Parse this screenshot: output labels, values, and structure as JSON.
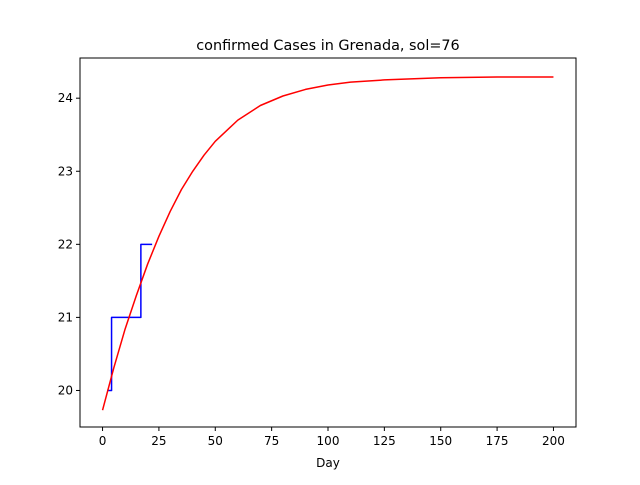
{
  "chart_data": {
    "type": "line",
    "title": "confirmed Cases in Grenada, sol=76",
    "xlabel": "Day",
    "ylabel": "",
    "xlim": [
      -10,
      210
    ],
    "ylim": [
      19.5,
      24.55
    ],
    "xticks": [
      0,
      25,
      50,
      75,
      100,
      125,
      150,
      175,
      200
    ],
    "yticks": [
      20,
      21,
      22,
      23,
      24
    ],
    "grid": false,
    "legend": "none",
    "series": [
      {
        "color": "#0000ff",
        "step": true,
        "x": [
          2,
          3,
          4,
          15,
          16,
          17,
          18,
          19,
          20,
          21,
          22
        ],
        "y": [
          20,
          20,
          21,
          21,
          21,
          22,
          22,
          22,
          22,
          22,
          22
        ]
      },
      {
        "color": "#ff0000",
        "step": false,
        "x": [
          0,
          5,
          10,
          15,
          20,
          25,
          30,
          35,
          40,
          45,
          50,
          60,
          70,
          80,
          90,
          100,
          110,
          125,
          150,
          175,
          200
        ],
        "y": [
          19.73,
          20.31,
          20.84,
          21.3,
          21.73,
          22.11,
          22.45,
          22.75,
          23.0,
          23.22,
          23.41,
          23.7,
          23.9,
          24.03,
          24.12,
          24.18,
          24.22,
          24.25,
          24.28,
          24.29,
          24.29
        ]
      }
    ]
  }
}
